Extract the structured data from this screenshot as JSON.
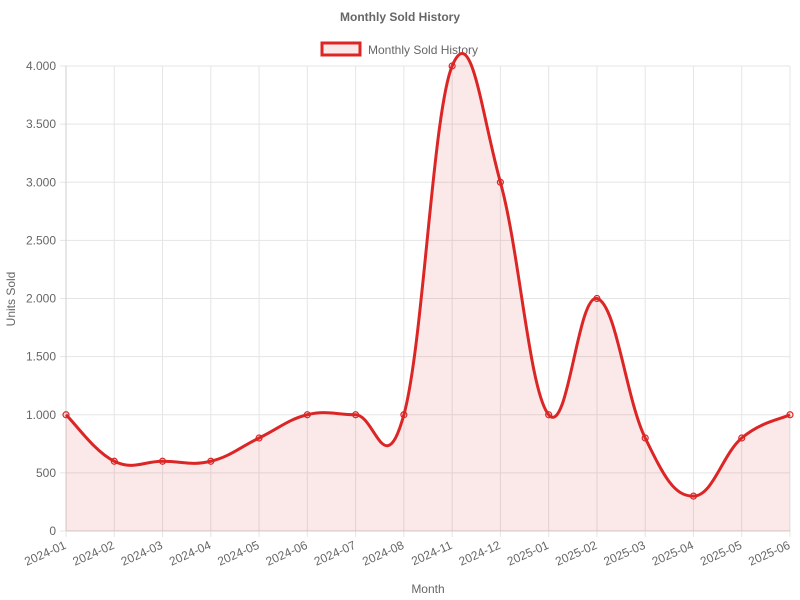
{
  "chart_data": {
    "type": "line",
    "title": "Monthly Sold History",
    "xlabel": "Month",
    "ylabel": "Units Sold",
    "ylim": [
      0,
      4000
    ],
    "y_ticks": [
      0,
      500,
      1000,
      1500,
      2000,
      2500,
      3000,
      3500,
      4000
    ],
    "y_tick_labels": [
      "0",
      "500",
      "1.000",
      "1.500",
      "2.000",
      "2.500",
      "3.000",
      "3.500",
      "4.000"
    ],
    "categories": [
      "2024-01",
      "2024-02",
      "2024-03",
      "2024-04",
      "2024-05",
      "2024-06",
      "2024-07",
      "2024-08",
      "2024-11",
      "2024-12",
      "2025-01",
      "2025-02",
      "2025-03",
      "2025-04",
      "2025-05",
      "2025-06"
    ],
    "series": [
      {
        "name": "Monthly Sold History",
        "values": [
          1000,
          600,
          600,
          600,
          800,
          1000,
          1000,
          1000,
          4000,
          3000,
          1000,
          2000,
          800,
          300,
          800,
          1000
        ],
        "color": "#dc2626",
        "fill": "rgba(220,38,38,0.1)"
      }
    ],
    "legend_position": "top",
    "grid": true
  }
}
